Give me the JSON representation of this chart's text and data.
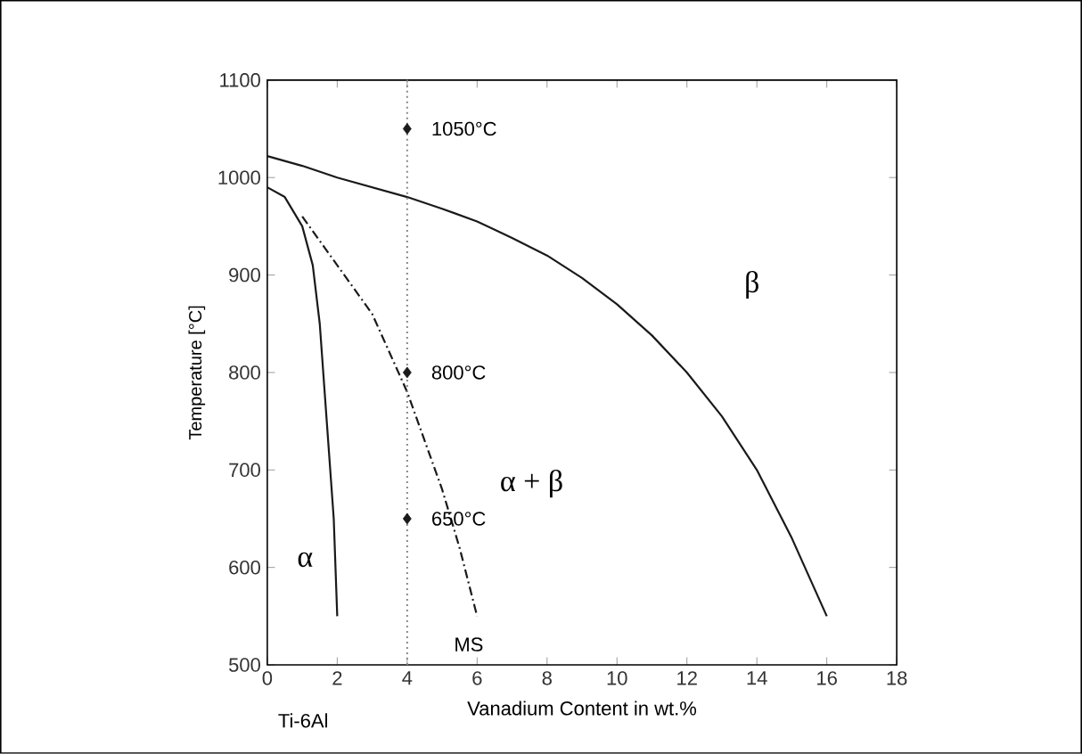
{
  "chart_data": {
    "type": "line",
    "xlabel": "Vanadium Content in wt.%",
    "ylabel": "Temperature [°C]",
    "xlim": [
      0,
      18
    ],
    "ylim": [
      500,
      1100
    ],
    "xticks": [
      0,
      2,
      4,
      6,
      8,
      10,
      12,
      14,
      16,
      18
    ],
    "yticks": [
      500,
      600,
      700,
      800,
      900,
      1000,
      1100
    ],
    "grid": false,
    "series": [
      {
        "color": "#1a1a1a",
        "line_style": "solid",
        "x": [
          0,
          1,
          2,
          3,
          4,
          5,
          6,
          7,
          8,
          9,
          10,
          11,
          12,
          13,
          14,
          15,
          16
        ],
        "values": [
          1022,
          1012,
          1000,
          990,
          980,
          968,
          955,
          938,
          920,
          897,
          870,
          838,
          800,
          755,
          700,
          630,
          550
        ]
      },
      {
        "color": "#1a1a1a",
        "line_style": "solid",
        "x": [
          0,
          0.5,
          1,
          1.3,
          1.5,
          1.7,
          1.9,
          2.0
        ],
        "values": [
          990,
          980,
          950,
          910,
          850,
          750,
          650,
          550
        ]
      },
      {
        "color": "#1a1a1a",
        "line_style": "dashdot",
        "x": [
          1,
          2,
          3,
          4,
          5,
          5.5,
          6
        ],
        "values": [
          960,
          910,
          860,
          780,
          680,
          620,
          550
        ]
      },
      {
        "type": "scatter",
        "color": "#1a1a1a",
        "marker": "diamond",
        "x": [
          4,
          4,
          4
        ],
        "values": [
          1050,
          800,
          650
        ]
      }
    ],
    "ref_lines": [
      {
        "axis": "x",
        "value": 4,
        "color": "#888888",
        "line_style": "dotted"
      }
    ],
    "annotations": [
      "1050°C",
      "800°C",
      "650°C",
      "α",
      "β",
      "α + β",
      "MS",
      "Ti-6Al"
    ]
  }
}
